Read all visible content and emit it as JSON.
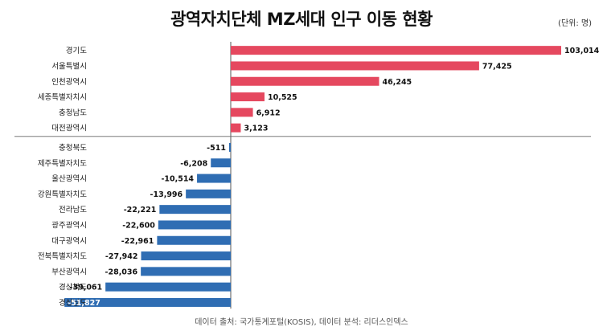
{
  "chart_data": {
    "type": "bar",
    "orientation": "horizontal",
    "title": "광역자치단체 MZ세대 인구 이동 현황",
    "unit_note": "(단위: 명)",
    "categories": [
      "경기도",
      "서울특별시",
      "인천광역시",
      "세종특별자치시",
      "충청남도",
      "대전광역시",
      "충청북도",
      "제주특별자치도",
      "울산광역시",
      "강원특별자치도",
      "전라남도",
      "광주광역시",
      "대구광역시",
      "전북특별자치도",
      "부산광역시",
      "경상북도",
      "경상남도"
    ],
    "values": [
      103014,
      77425,
      46245,
      10525,
      6912,
      3123,
      -511,
      -6208,
      -10514,
      -13996,
      -22221,
      -22600,
      -22961,
      -27942,
      -28036,
      -39061,
      -51827
    ],
    "value_labels": [
      "103,014",
      "77,425",
      "46,245",
      "10,525",
      "6,912",
      "3,123",
      "-511",
      "-6,208",
      "-10,514",
      "-13,996",
      "-22,221",
      "-22,600",
      "-22,961",
      "-27,942",
      "-28,036",
      "-39,061",
      "-51,827"
    ],
    "positive_color": "#e5485f",
    "negative_color": "#2f6db3",
    "grid": false,
    "legend": "none"
  },
  "source_note": "데이터 출처: 국가통계포털(KOSIS), 데이터 분석: 리더스인덱스"
}
